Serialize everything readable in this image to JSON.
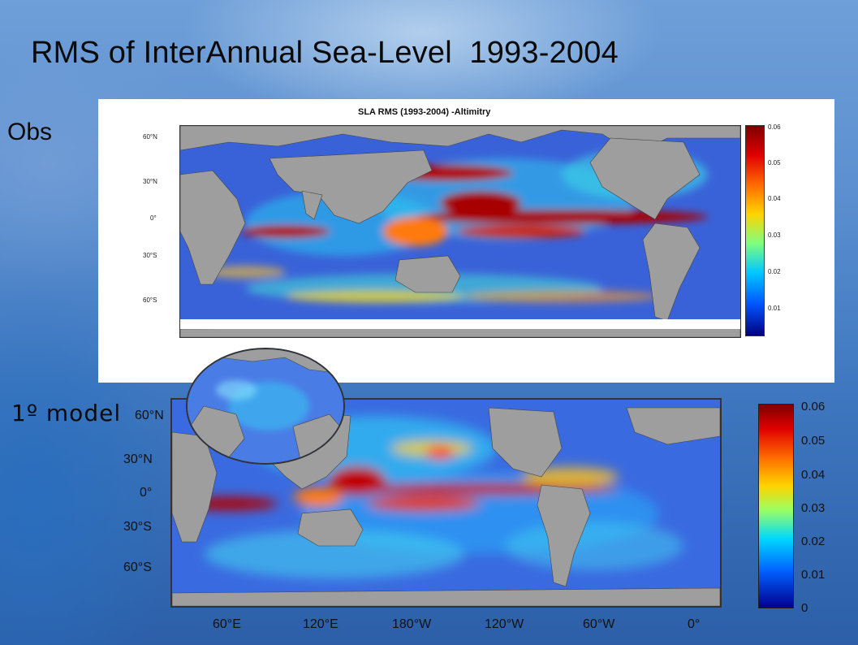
{
  "slide": {
    "title": "RMS of InterAnnual Sea-Level  1993-2004",
    "obs_label": "Obs",
    "model_label": "1º model"
  },
  "obs_panel": {
    "title": "SLA RMS (1993-2004) -Altimitry",
    "lat_ticks": [
      "60°N",
      "30°N",
      "0°",
      "30°S",
      "60°S"
    ],
    "colorbar_ticks": [
      "0.06",
      "0.05",
      "0.04",
      "0.03",
      "0.02",
      "0.01"
    ]
  },
  "model_panel": {
    "lat_ticks": [
      "60°N",
      "30°N",
      "0°",
      "30°S",
      "60°S"
    ],
    "lon_ticks": [
      "60°E",
      "120°E",
      "180°W",
      "120°W",
      "60°W",
      "0°"
    ],
    "colorbar_ticks": [
      "0.06",
      "0.05",
      "0.04",
      "0.03",
      "0.02",
      "0.01",
      "0"
    ]
  },
  "colors": {
    "land": "#9e9e9e",
    "ocean_low": "#2f56d6",
    "ocean_high": "#a80000"
  }
}
